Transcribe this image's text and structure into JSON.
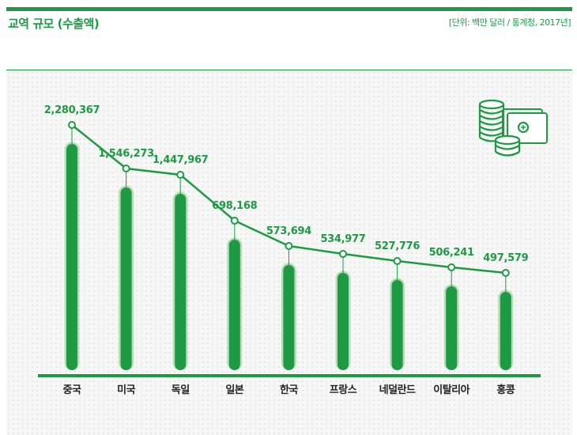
{
  "header": {
    "title": "교역 규모 (수출액)",
    "source": "[단위: 백만 달러 / 통계청, 2017년]"
  },
  "icon": {
    "name": "coins-and-banknotes-icon"
  },
  "colors": {
    "accent": "#1e9a45",
    "bar_outline": "#b8dcb8",
    "category_text": "#222222"
  },
  "chart_data": {
    "type": "bar",
    "categories": [
      "중국",
      "미국",
      "독일",
      "일본",
      "한국",
      "프랑스",
      "네덜란드",
      "이탈리아",
      "홍콩"
    ],
    "values": [
      2280367,
      1546273,
      1447967,
      698168,
      573694,
      534977,
      527776,
      506241,
      497579
    ],
    "value_labels": [
      "2,280,367",
      "1,546,273",
      "1,447,967",
      "698,168",
      "573,694",
      "534,977",
      "527,776",
      "506,241",
      "497,579"
    ],
    "title": "교역 규모 (수출액)",
    "xlabel": "",
    "ylabel": "",
    "grid": false,
    "axis_scale": "nonlinear",
    "overlay": "line"
  }
}
